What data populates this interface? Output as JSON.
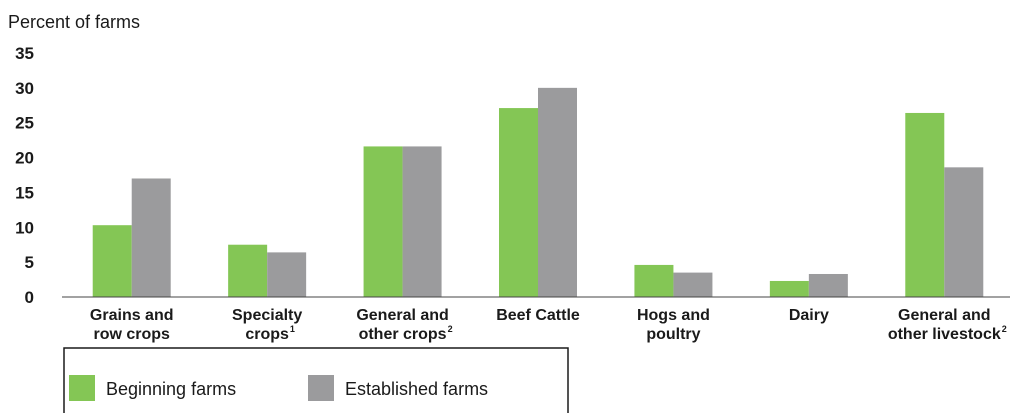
{
  "chart_data": {
    "type": "bar",
    "ylabel": "Percent of farms",
    "ylim": [
      0,
      35
    ],
    "yticks": [
      "0",
      "5",
      "10",
      "15",
      "20",
      "25",
      "30",
      "35"
    ],
    "categories": [
      {
        "lines": [
          "Grains and",
          "row crops"
        ],
        "footnote": ""
      },
      {
        "lines": [
          "Specialty",
          "crops"
        ],
        "footnote": "1"
      },
      {
        "lines": [
          "General and",
          "other crops"
        ],
        "footnote": "2"
      },
      {
        "lines": [
          "Beef Cattle"
        ],
        "footnote": ""
      },
      {
        "lines": [
          "Hogs and",
          "poultry"
        ],
        "footnote": ""
      },
      {
        "lines": [
          "Dairy"
        ],
        "footnote": ""
      },
      {
        "lines": [
          "General and",
          "other livestock"
        ],
        "footnote": "2"
      }
    ],
    "series": [
      {
        "name": "Beginning farms",
        "color": "#84c655",
        "values": [
          10.3,
          7.5,
          21.6,
          27.1,
          4.6,
          2.3,
          26.4
        ]
      },
      {
        "name": "Established farms",
        "color": "#9b9b9d",
        "values": [
          17.0,
          6.4,
          21.6,
          30.0,
          3.5,
          3.3,
          18.6
        ]
      }
    ],
    "legend_position": "bottom-left",
    "grid": false
  }
}
